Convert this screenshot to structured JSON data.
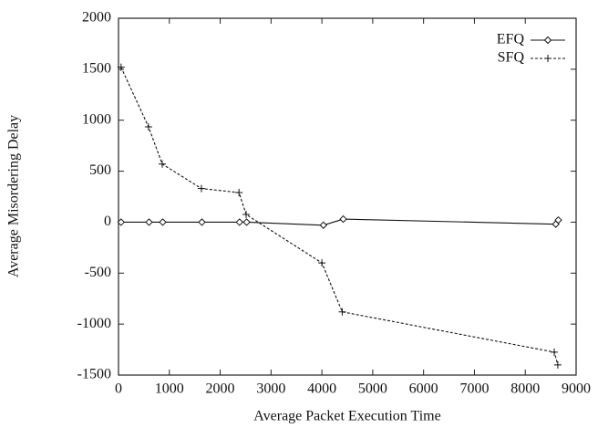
{
  "chart_data": {
    "type": "line",
    "x_label": "Average Packet Execution Time",
    "y_label": "Average Misordering Delay",
    "xlim": [
      0,
      9000
    ],
    "xticks": [
      0,
      1000,
      2000,
      3000,
      4000,
      5000,
      6000,
      7000,
      8000,
      9000
    ],
    "ylim": [
      -1500,
      2000
    ],
    "yticks": [
      -1500,
      -1000,
      -500,
      0,
      500,
      1000,
      1500,
      2000
    ],
    "grid": false,
    "legend": "top-right",
    "series": [
      {
        "name": "EFQ",
        "color": "#111111",
        "marker": "diamond",
        "dash": "solid",
        "x": [
          50,
          600,
          870,
          1640,
          2380,
          2520,
          4030,
          4420,
          8600,
          8650
        ],
        "values": [
          0,
          0,
          0,
          0,
          0,
          0,
          -30,
          30,
          -20,
          20
        ]
      },
      {
        "name": "SFQ",
        "color": "#111111",
        "marker": "plus",
        "dash": "dashed",
        "x": [
          50,
          590,
          860,
          1630,
          2370,
          2510,
          4000,
          4400,
          8570,
          8640
        ],
        "values": [
          1520,
          935,
          570,
          330,
          290,
          75,
          -400,
          -880,
          -1275,
          -1400
        ]
      }
    ]
  }
}
